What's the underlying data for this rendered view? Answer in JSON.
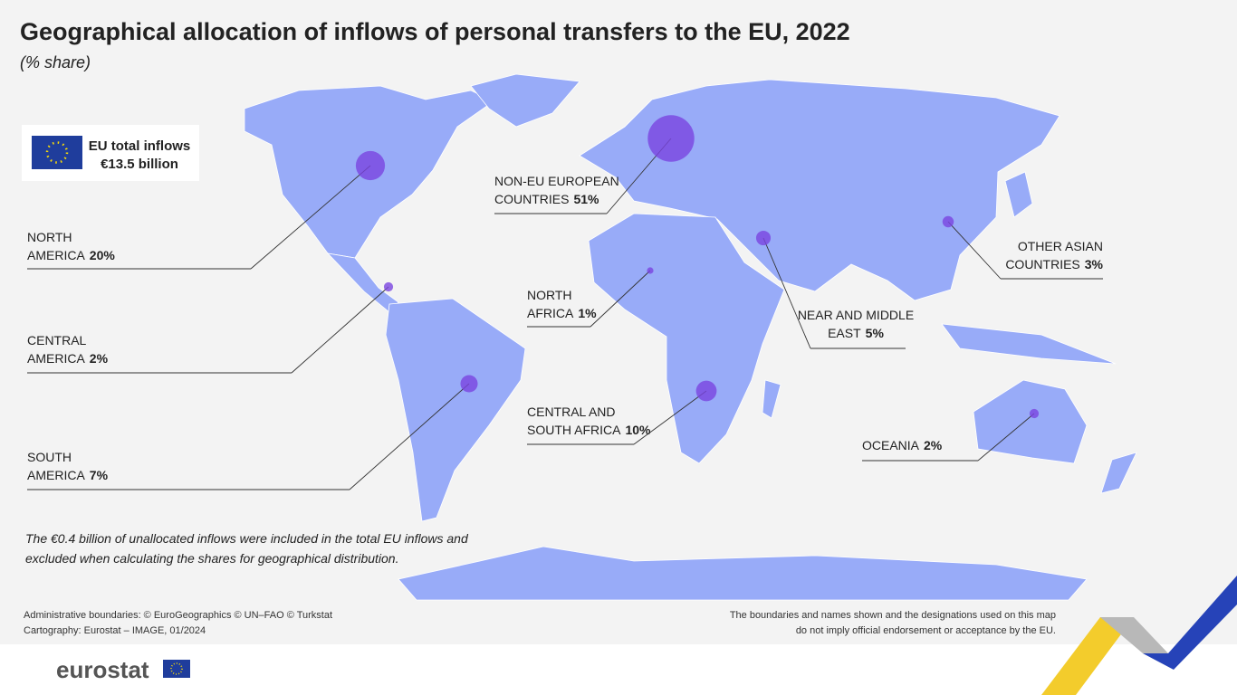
{
  "header": {
    "title": "Geographical allocation of inflows of personal transfers to the EU, 2022",
    "subtitle": "(% share)"
  },
  "total_box": {
    "label": "EU total inflows",
    "value": "€13.5 billion"
  },
  "regions": [
    {
      "name_lines": [
        "NORTH",
        "AMERICA"
      ],
      "share": 20,
      "share_label": "20%"
    },
    {
      "name_lines": [
        "NON-EU EUROPEAN",
        "COUNTRIES"
      ],
      "share": 51,
      "share_label": "51%"
    },
    {
      "name_lines": [
        "OTHER ASIAN",
        "COUNTRIES"
      ],
      "share": 3,
      "share_label": "3%"
    },
    {
      "name_lines": [
        "CENTRAL",
        "AMERICA"
      ],
      "share": 2,
      "share_label": "2%"
    },
    {
      "name_lines": [
        "NORTH",
        "AFRICA"
      ],
      "share": 1,
      "share_label": "1%"
    },
    {
      "name_lines": [
        "NEAR AND MIDDLE",
        "EAST"
      ],
      "share": 5,
      "share_label": "5%"
    },
    {
      "name_lines": [
        "SOUTH",
        "AMERICA"
      ],
      "share": 7,
      "share_label": "7%"
    },
    {
      "name_lines": [
        "CENTRAL AND",
        "SOUTH AFRICA"
      ],
      "share": 10,
      "share_label": "10%"
    },
    {
      "name_lines": [
        "OCEANIA"
      ],
      "share": 2,
      "share_label": "2%"
    }
  ],
  "note": [
    "The €0.4 billion of unallocated inflows were included in the total EU inflows and",
    "excluded when calculating the shares for geographical distribution."
  ],
  "footer": {
    "sources": [
      "Administrative boundaries: © EuroGeographics © UN–FAO © Turkstat",
      "Cartography: Eurostat – IMAGE, 01/2024"
    ],
    "disclaimer": [
      "The boundaries and names shown and the designations used on this map",
      "do not imply official endorsement or acceptance by the EU."
    ],
    "logo": "eurostat"
  }
}
